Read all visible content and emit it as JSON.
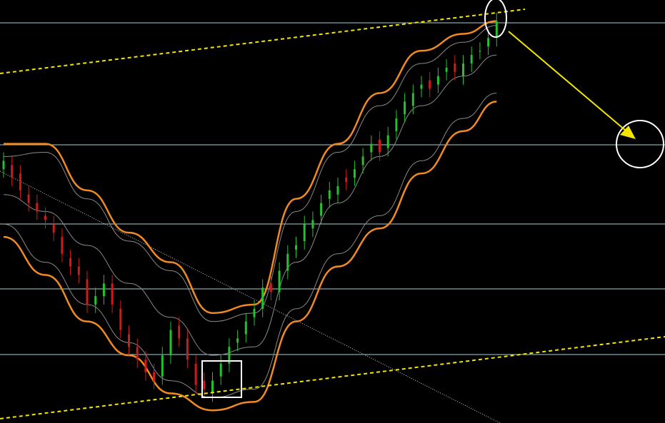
{
  "chart_data": {
    "type": "candlestick",
    "up_color": "#22c32e",
    "down_color": "#d11a1a",
    "ylim": [
      0,
      100
    ],
    "open": [
      60,
      61,
      59,
      54,
      52,
      49,
      47,
      44,
      39,
      37,
      34,
      28,
      30,
      33,
      27,
      21,
      18,
      15,
      12,
      11,
      16,
      23,
      20,
      14,
      10,
      7,
      11,
      14,
      19,
      21,
      25,
      27,
      33,
      31,
      36,
      41,
      43,
      46,
      49,
      53,
      54,
      58,
      58,
      61,
      64,
      67,
      65,
      69,
      73,
      75,
      79,
      81,
      80,
      83,
      85,
      82,
      85,
      88,
      89,
      91
    ],
    "high": [
      64,
      63,
      61,
      56,
      54,
      51,
      49,
      46,
      41,
      39,
      36,
      32,
      35,
      35,
      29,
      23,
      20,
      17,
      14,
      18,
      24,
      25,
      22,
      16,
      12,
      12,
      16,
      20,
      22,
      26,
      29,
      34,
      35,
      38,
      42,
      44,
      49,
      50,
      54,
      57,
      58,
      60,
      62,
      65,
      68,
      69,
      70,
      74,
      78,
      80,
      82,
      83,
      84,
      86,
      87,
      87,
      89,
      90,
      93,
      97
    ],
    "low": [
      58,
      56,
      53,
      50,
      48,
      46,
      43,
      38,
      35,
      33,
      26,
      26,
      28,
      26,
      20,
      16,
      13,
      10,
      8,
      9,
      14,
      18,
      13,
      7,
      6,
      5,
      9,
      12,
      17,
      19,
      23,
      25,
      29,
      29,
      34,
      39,
      41,
      44,
      47,
      51,
      52,
      55,
      56,
      59,
      62,
      62,
      63,
      67,
      71,
      73,
      77,
      77,
      78,
      81,
      81,
      80,
      83,
      86,
      87,
      89
    ],
    "close": [
      62,
      58,
      55,
      52,
      50,
      48,
      45,
      40,
      37,
      35,
      28,
      30,
      33,
      28,
      22,
      18,
      15,
      12,
      10,
      16,
      22,
      20,
      15,
      9,
      8,
      10,
      14,
      18,
      20,
      24,
      27,
      32,
      31,
      36,
      40,
      42,
      47,
      48,
      52,
      55,
      56,
      57,
      60,
      63,
      66,
      64,
      68,
      72,
      76,
      78,
      80,
      79,
      82,
      84,
      83,
      85,
      87,
      88,
      91,
      95
    ],
    "bands": [
      {
        "color": "#f08a24",
        "x": [
          0,
          5,
          10,
          15,
          20,
          25,
          30,
          35,
          40,
          45,
          50,
          55,
          59
        ],
        "values": [
          66,
          66,
          55,
          45,
          38,
          26,
          28,
          53,
          66,
          78,
          88,
          92,
          95
        ]
      },
      {
        "color": "#8a8a8a",
        "x": [
          0,
          5,
          10,
          15,
          20,
          25,
          30,
          35,
          40,
          45,
          50,
          55,
          59
        ],
        "values": [
          63,
          64,
          53,
          43,
          36,
          24,
          26,
          50,
          64,
          75,
          85,
          90,
          94
        ]
      },
      {
        "color": "#8a8a8a",
        "x": [
          0,
          5,
          10,
          15,
          20,
          25,
          30,
          35,
          40,
          45,
          50,
          55,
          59
        ],
        "values": [
          54,
          50,
          42,
          33,
          25,
          16,
          18,
          38,
          52,
          63,
          75,
          82,
          87
        ]
      },
      {
        "color": "#8a8a8a",
        "x": [
          0,
          5,
          10,
          15,
          20,
          25,
          30,
          35,
          40,
          45,
          50,
          55,
          59
        ],
        "values": [
          47,
          38,
          28,
          19,
          10,
          6,
          8,
          27,
          40,
          49,
          62,
          72,
          78
        ]
      },
      {
        "color": "#f08a24",
        "x": [
          0,
          5,
          10,
          15,
          20,
          25,
          30,
          35,
          40,
          45,
          50,
          55,
          59
        ],
        "values": [
          44,
          35,
          24,
          16,
          7,
          3,
          5,
          24,
          37,
          46,
          59,
          69,
          76
        ]
      }
    ]
  }
}
